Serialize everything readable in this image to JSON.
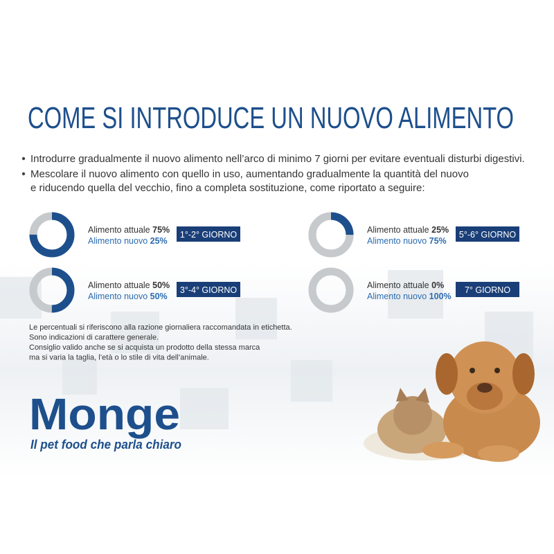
{
  "title": "COME SI INTRODUCE UN NUOVO ALIMENTO",
  "bullets": [
    [
      "Introdurre gradualmente il nuovo alimento nell’arco di minimo 7 giorni per evitare eventuali disturbi digestivi."
    ],
    [
      "Mescolare il nuovo alimento con quello in uso, aumentando gradualmente la quantità del nuovo",
      "e riducendo quella del vecchio, fino a completa sostituzione, come riportato a seguire:"
    ]
  ],
  "current_label": "Alimento attuale",
  "new_label": "Alimento nuovo",
  "steps": [
    {
      "values": [
        75,
        25
      ],
      "value_labels": [
        "75%",
        "25%"
      ],
      "day": "1°-2° GIORNO"
    },
    {
      "values": [
        50,
        50
      ],
      "value_labels": [
        "50%",
        "50%"
      ],
      "day": "3°-4° GIORNO"
    },
    {
      "values": [
        25,
        75
      ],
      "value_labels": [
        "25%",
        "75%"
      ],
      "day": "5°-6° GIORNO"
    },
    {
      "values": [
        0,
        100
      ],
      "value_labels": [
        "0%",
        "100%"
      ],
      "day": "7° GIORNO"
    }
  ],
  "notes": [
    "Le percentuali si riferiscono alla razione giornaliera raccomandata in etichetta.",
    "Sono indicazioni di carattere generale.",
    "Consiglio valido anche se si acquista un prodotto della stessa marca",
    "ma si varia la taglia, l’età o lo stile di vita dell’animale."
  ],
  "logo": {
    "brand": "Monge",
    "tagline": "Il pet food che parla chiaro"
  }
}
